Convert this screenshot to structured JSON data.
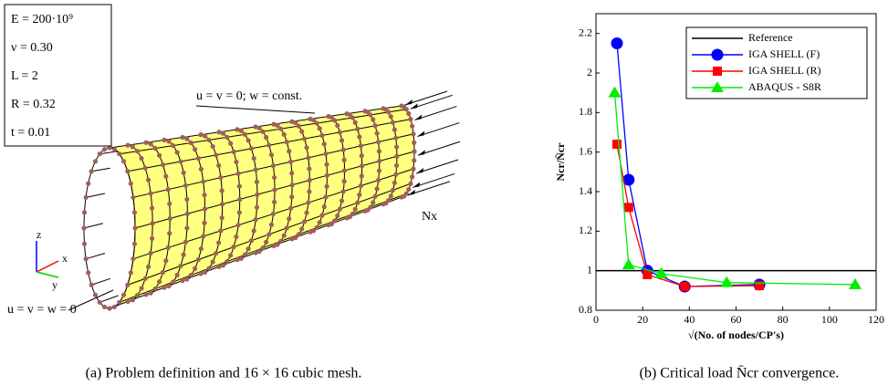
{
  "chart_data": {
    "type": "line",
    "x_label": "√(No. of nodes/CP's)",
    "y_label": "Ncr/N̄cr",
    "xlim": [
      0,
      120
    ],
    "ylim": [
      0.8,
      2.3
    ],
    "xticks": [
      0,
      20,
      40,
      60,
      80,
      100,
      120
    ],
    "yticks": [
      0.8,
      1,
      1.2,
      1.4,
      1.6,
      1.8,
      2,
      2.2
    ],
    "legend": "upper right",
    "series": [
      {
        "name": "Reference",
        "color": "#000000",
        "x": [
          0,
          120
        ],
        "values": [
          1,
          1
        ]
      },
      {
        "name": "IGA SHELL (F)",
        "color": "#0000ff",
        "marker": "circle",
        "x": [
          9,
          14,
          22,
          38,
          70
        ],
        "values": [
          2.15,
          1.46,
          1.0,
          0.92,
          0.93
        ]
      },
      {
        "name": "IGA SHELL (R)",
        "color": "#ff0000",
        "marker": "square",
        "x": [
          9,
          14,
          22,
          38,
          70
        ],
        "values": [
          1.64,
          1.32,
          0.98,
          0.92,
          0.925
        ]
      },
      {
        "name": "ABAQUS - S8R",
        "color": "#00ee00",
        "marker": "triangle",
        "x": [
          8,
          14,
          28,
          56,
          111
        ],
        "values": [
          1.9,
          1.03,
          0.985,
          0.94,
          0.93
        ]
      }
    ]
  },
  "diagram": {
    "parameters": [
      "E = 200·10⁹",
      "ν = 0.30",
      "L = 2",
      "R = 0.32",
      "t = 0.01"
    ],
    "top_bc": "u = v = 0; w = const.",
    "load": "Nx",
    "bottom_bc": "u = v = w = 0",
    "axes": [
      "z",
      "x",
      "y"
    ]
  },
  "captions": [
    "(a) Problem definition and 16 × 16 cubic mesh.",
    "(b) Critical load N̄cr convergence."
  ]
}
